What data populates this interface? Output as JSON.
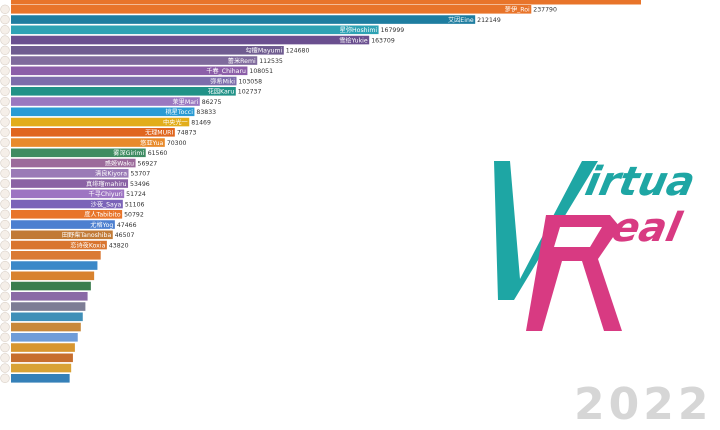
{
  "chart_data": {
    "type": "bar",
    "orientation": "horizontal",
    "sort": "descending",
    "categories": [
      "萝伊_Roi",
      "艾因Eine",
      "星弥Hoshimi",
      "雪绘Yukie",
      "勾檀Mayumi",
      "蕾米Remi",
      "千春_Chiharu",
      "弥希Miki",
      "花园Karu",
      "茉里Mari",
      "桃星Tocci",
      "中央光一",
      "无理MURI",
      "悠亚Yua",
      "雾深Girimi",
      "惑姬Waku",
      "清良Kiyora",
      "真绯瑠mahiru",
      "千寻Chiyuri",
      "沙夜_Saya",
      "度人Tabibito",
      "尤格Yog",
      "田野柴Tanoshiba",
      "恋诗夜Koxia"
    ],
    "values": [
      237790,
      212149,
      167999,
      163709,
      124680,
      112535,
      108051,
      103058,
      102737,
      86275,
      83833,
      81469,
      74873,
      70300,
      61560,
      56927,
      53707,
      53496,
      51724,
      51106,
      50792,
      47466,
      46507,
      43820
    ],
    "bar_colors": [
      "#e8742a",
      "#1e7da0",
      "#2ea2b4",
      "#6a4f8f",
      "#6f5c90",
      "#7f6a9c",
      "#8c5ea8",
      "#7d6dab",
      "#219287",
      "#9a78c0",
      "#2a9bd4",
      "#e2ad1a",
      "#e0661f",
      "#e88a2b",
      "#3f8c62",
      "#9c6b9b",
      "#9a7bb6",
      "#8a62a4",
      "#9d74c2",
      "#7a63b8",
      "#e8742a",
      "#4c7fd0",
      "#c17a36",
      "#d9752f"
    ],
    "unlabeled_bars": [
      {
        "value": 41000,
        "color": "#da7a35"
      },
      {
        "value": 39500,
        "color": "#3b88c8"
      },
      {
        "value": 38000,
        "color": "#d8822e"
      },
      {
        "value": 36500,
        "color": "#3a7d4e"
      },
      {
        "value": 35000,
        "color": "#8a6aa6"
      },
      {
        "value": 34000,
        "color": "#7d7d95"
      },
      {
        "value": 32800,
        "color": "#3f8fb8"
      },
      {
        "value": 31900,
        "color": "#c8883a"
      },
      {
        "value": 30500,
        "color": "#6f9cd8"
      },
      {
        "value": 29200,
        "color": "#d89630"
      },
      {
        "value": 28300,
        "color": "#c76e2e"
      },
      {
        "value": 27500,
        "color": "#d9a235"
      },
      {
        "value": 26800,
        "color": "#3580b8"
      }
    ],
    "xlim": [
      0,
      250000
    ],
    "title": "",
    "xlabel": "",
    "ylabel": ""
  },
  "logo": {
    "text_line1": "irtua",
    "text_line2": "eal",
    "teal": "#1ea6a4",
    "magenta": "#d83a82"
  },
  "year_watermark": "2022"
}
